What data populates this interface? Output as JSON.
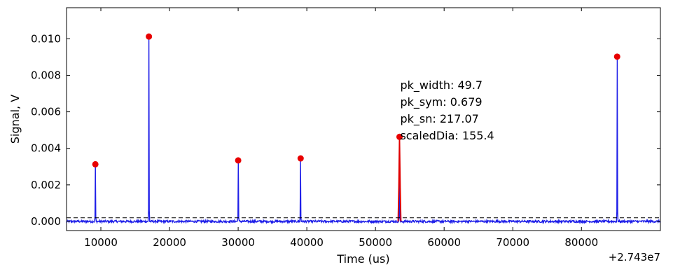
{
  "chart_data": {
    "type": "line",
    "title": "",
    "xlabel": "Time (us)",
    "ylabel": "Signal, V",
    "x_offset_label": "+2.743e7",
    "xlim": [
      5000,
      91500
    ],
    "ylim": [
      -0.0005,
      0.0117
    ],
    "x_ticks": [
      10000,
      20000,
      30000,
      40000,
      50000,
      60000,
      70000,
      80000
    ],
    "x_tick_labels": [
      "10000",
      "20000",
      "30000",
      "40000",
      "50000",
      "60000",
      "70000",
      "80000"
    ],
    "y_ticks": [
      0.0,
      0.002,
      0.004,
      0.006,
      0.008,
      0.01
    ],
    "y_tick_labels": [
      "0.000",
      "0.002",
      "0.004",
      "0.006",
      "0.008",
      "0.010"
    ],
    "threshold": 0.0002,
    "baseline_noise": 6e-05,
    "peaks": [
      {
        "x": 9200,
        "y": 0.00313,
        "selected": false
      },
      {
        "x": 17000,
        "y": 0.01012,
        "selected": false
      },
      {
        "x": 30000,
        "y": 0.00334,
        "selected": false
      },
      {
        "x": 39100,
        "y": 0.00345,
        "selected": false
      },
      {
        "x": 53500,
        "y": 0.00463,
        "selected": true
      },
      {
        "x": 85200,
        "y": 0.00902,
        "selected": false
      }
    ],
    "annotation": {
      "x": 53500,
      "lines": [
        "pk_width: 49.7",
        "pk_sym: 0.679",
        "pk_sn: 217.07",
        "scaledDia: 155.4"
      ]
    },
    "colors": {
      "signal": "#1f1fe8",
      "selected_peak": "#e00000",
      "marker": "#e80000",
      "threshold": "#000000"
    },
    "grid": false
  }
}
